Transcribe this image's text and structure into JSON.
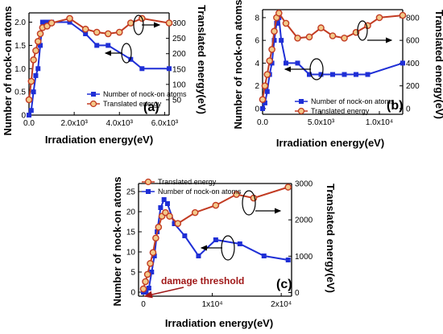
{
  "colors": {
    "nock": "#1f2fd6",
    "energy": "#c23b22",
    "energy_fill": "#f3c98a",
    "annot": "#a01818"
  },
  "chart_data": [
    {
      "type": "line",
      "panel_label": "(a)",
      "xlabel": "Irradiation energy(eV)",
      "ylabel": "Number of nock-on atoms",
      "y2label": "Translated energy(eV)",
      "xticks": [
        {
          "v": 0,
          "l": "0.0"
        },
        {
          "v": 2000,
          "l": "2.0x10³"
        },
        {
          "v": 4000,
          "l": "4.0x10³"
        },
        {
          "v": 6000,
          "l": "6.0x10³"
        }
      ],
      "yticks": [
        {
          "v": 0,
          "l": "0"
        },
        {
          "v": 0.5,
          "l": "0.5"
        },
        {
          "v": 1,
          "l": "1.0"
        },
        {
          "v": 1.5,
          "l": "1.5"
        },
        {
          "v": 2,
          "l": "2.0"
        }
      ],
      "y2ticks": [
        {
          "v": 50,
          "l": "50"
        },
        {
          "v": 100,
          "l": "100"
        },
        {
          "v": 150,
          "l": "150"
        },
        {
          "v": 200,
          "l": "200"
        },
        {
          "v": 250,
          "l": "250"
        },
        {
          "v": 300,
          "l": "300"
        }
      ],
      "legend": [
        "Number of nock-on atoms",
        "Translated energy"
      ],
      "series": [
        {
          "name": "Number of nock-on atoms",
          "axis": "left",
          "marker": "square",
          "x": [
            0,
            100,
            200,
            300,
            400,
            500,
            600,
            700,
            800,
            900,
            1000,
            1800,
            2500,
            3000,
            3500,
            4500,
            5000,
            6200
          ],
          "values": [
            0,
            0.1,
            0.5,
            0.85,
            1.0,
            1.5,
            2.0,
            2.0,
            2.0,
            2.0,
            2.0,
            2.0,
            1.75,
            1.5,
            1.5,
            1.2,
            1.0,
            1.0
          ]
        },
        {
          "name": "Translated energy",
          "axis": "right",
          "marker": "circle",
          "x": [
            0,
            100,
            200,
            300,
            400,
            500,
            600,
            800,
            1000,
            1800,
            2500,
            3000,
            3500,
            4000,
            4500,
            5000,
            6200
          ],
          "values": [
            50,
            110,
            180,
            210,
            240,
            265,
            285,
            290,
            300,
            315,
            280,
            270,
            265,
            270,
            300,
            315,
            300
          ]
        }
      ]
    },
    {
      "type": "line",
      "panel_label": "(b)",
      "xlabel": "Irradiation energy(eV)",
      "ylabel": "Number of nock-on atoms",
      "y2label": "Translated energy(eV)",
      "xticks": [
        {
          "v": 0,
          "l": "0.0"
        },
        {
          "v": 5000,
          "l": "5.0x10³"
        },
        {
          "v": 10000,
          "l": "1.0x10⁴"
        }
      ],
      "yticks": [
        {
          "v": 0,
          "l": "0"
        },
        {
          "v": 2,
          "l": "2"
        },
        {
          "v": 4,
          "l": "4"
        },
        {
          "v": 6,
          "l": "6"
        },
        {
          "v": 8,
          "l": "8"
        }
      ],
      "y2ticks": [
        {
          "v": 0,
          "l": "0"
        },
        {
          "v": 200,
          "l": "200"
        },
        {
          "v": 400,
          "l": "400"
        },
        {
          "v": 600,
          "l": "600"
        },
        {
          "v": 800,
          "l": "800"
        }
      ],
      "legend": [
        "Number of nock-on atoms",
        "Translated energy"
      ],
      "series": [
        {
          "name": "Number of nock-on atoms",
          "axis": "left",
          "marker": "square",
          "x": [
            0,
            200,
            400,
            600,
            800,
            1000,
            1200,
            1400,
            1600,
            2000,
            3000,
            4000,
            5000,
            6000,
            7000,
            8000,
            9000,
            12000
          ],
          "values": [
            0,
            0.5,
            1.5,
            3,
            4,
            6,
            7.5,
            8,
            6,
            4,
            4,
            3,
            3,
            3,
            3,
            3,
            3,
            4
          ]
        },
        {
          "name": "Translated energy",
          "axis": "right",
          "marker": "circle",
          "x": [
            0,
            200,
            400,
            600,
            800,
            1000,
            1200,
            1400,
            2000,
            3000,
            4000,
            5000,
            6000,
            7000,
            8000,
            9000,
            10000,
            12000
          ],
          "values": [
            80,
            200,
            300,
            420,
            520,
            680,
            800,
            840,
            750,
            620,
            630,
            710,
            640,
            620,
            670,
            730,
            800,
            820
          ]
        }
      ]
    },
    {
      "type": "line",
      "panel_label": "(c)",
      "xlabel": "Irradiation energy(eV)",
      "ylabel": "Number of nock-on atoms",
      "y2label": "Translated energy(eV)",
      "annotation": "damage threshold",
      "xticks": [
        {
          "v": 0,
          "l": "0"
        },
        {
          "v": 10000,
          "l": "1x10⁴"
        },
        {
          "v": 20000,
          "l": "2x10⁴"
        }
      ],
      "yticks": [
        {
          "v": 0,
          "l": "0"
        },
        {
          "v": 5,
          "l": "5"
        },
        {
          "v": 10,
          "l": "10"
        },
        {
          "v": 15,
          "l": "15"
        },
        {
          "v": 20,
          "l": "20"
        },
        {
          "v": 25,
          "l": "25"
        }
      ],
      "y2ticks": [
        {
          "v": 0,
          "l": "0"
        },
        {
          "v": 1000,
          "l": "1000"
        },
        {
          "v": 2000,
          "l": "2000"
        },
        {
          "v": 3000,
          "l": "3000"
        }
      ],
      "legend": [
        "Translated energy",
        "Number of nock-on atoms"
      ],
      "series": [
        {
          "name": "Number of nock-on atoms",
          "axis": "left",
          "marker": "square",
          "x": [
            0,
            400,
            800,
            1200,
            1600,
            2000,
            2500,
            3000,
            3500,
            4500,
            6000,
            8000,
            10500,
            14000,
            17500,
            21000
          ],
          "values": [
            0,
            0,
            1,
            5,
            9,
            15,
            21,
            23,
            22,
            17,
            14,
            9,
            13,
            12,
            9,
            8
          ]
        },
        {
          "name": "Translated energy",
          "axis": "right",
          "marker": "circle",
          "x": [
            0,
            300,
            600,
            1000,
            1400,
            1800,
            2200,
            2700,
            3200,
            3800,
            5000,
            7500,
            10500,
            13500,
            16000,
            21000
          ],
          "values": [
            100,
            300,
            500,
            800,
            1100,
            1500,
            1800,
            2100,
            2200,
            2100,
            1900,
            2200,
            2400,
            2700,
            2600,
            2900
          ]
        }
      ]
    }
  ]
}
